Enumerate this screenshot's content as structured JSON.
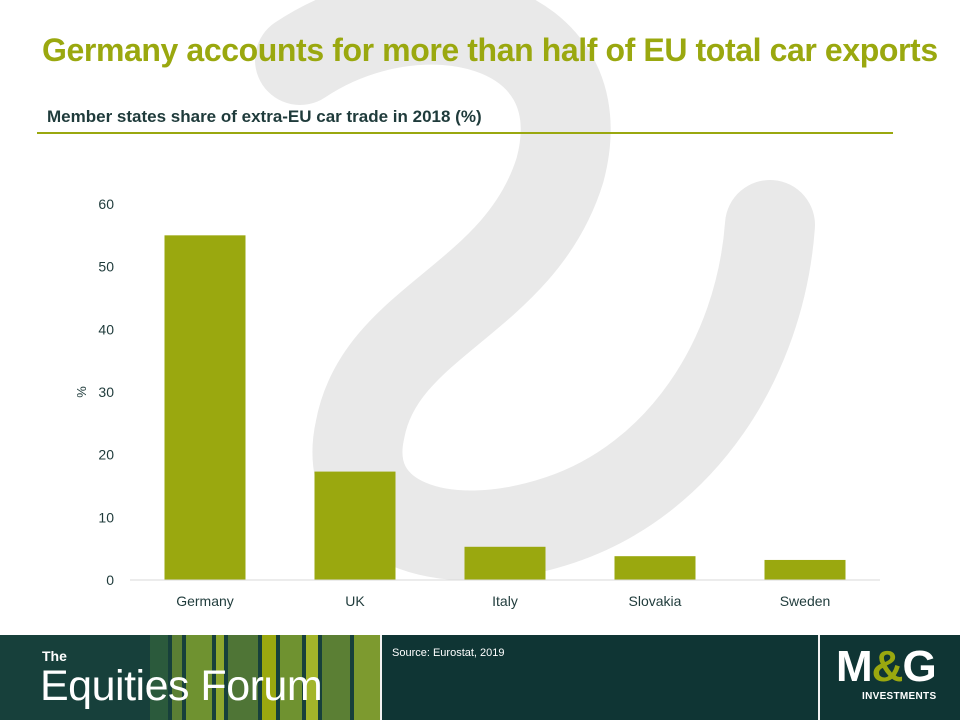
{
  "header": {
    "title": "Germany accounts for more than half of EU total car exports",
    "subtitle": "Member states share of extra-EU car trade in 2018 (%)"
  },
  "chart_data": {
    "type": "bar",
    "categories": [
      "Germany",
      "UK",
      "Italy",
      "Slovakia",
      "Sweden"
    ],
    "values": [
      55,
      17.3,
      5.3,
      3.8,
      3.2
    ],
    "title": "Member states share of extra-EU car trade in 2018 (%)",
    "xlabel": "",
    "ylabel": "%",
    "ylim": [
      0,
      60
    ],
    "yticks": [
      0,
      10,
      20,
      30,
      40,
      50,
      60
    ],
    "grid": false,
    "legend": "none",
    "bar_color": "#9aa80f"
  },
  "footer": {
    "brand_the": "The",
    "brand_name": "Equities Forum",
    "source": "Source: Eurostat, 2019",
    "logo_main": "M",
    "logo_amp": "&",
    "logo_end": "G",
    "logo_sub": "INVESTMENTS"
  },
  "colors": {
    "accent": "#9aa80f",
    "text_dark": "#1f3b3b",
    "footer_bg": "#0f3534"
  }
}
